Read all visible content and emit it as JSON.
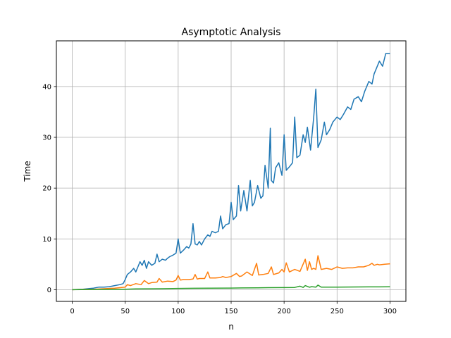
{
  "chart_data": {
    "type": "line",
    "title": "Asymptotic Analysis",
    "xlabel": "n",
    "ylabel": "Time",
    "xlim": [
      -15,
      315
    ],
    "ylim": [
      -2.3,
      49.0
    ],
    "grid": true,
    "x_ticks": [
      0,
      50,
      100,
      150,
      200,
      250,
      300
    ],
    "y_ticks": [
      0,
      10,
      20,
      30,
      40
    ],
    "series": [
      {
        "color": "#1f77b4",
        "x": [
          0,
          10,
          20,
          25,
          30,
          35,
          40,
          45,
          48,
          50,
          52,
          55,
          58,
          60,
          62,
          64,
          66,
          68,
          70,
          72,
          75,
          78,
          80,
          82,
          85,
          88,
          90,
          92,
          95,
          98,
          100,
          102,
          105,
          108,
          110,
          112,
          114,
          116,
          118,
          120,
          122,
          125,
          128,
          130,
          132,
          135,
          138,
          140,
          142,
          145,
          148,
          150,
          152,
          155,
          157,
          159,
          162,
          165,
          168,
          170,
          172,
          175,
          178,
          180,
          182,
          185,
          187,
          188,
          190,
          192,
          195,
          198,
          200,
          202,
          205,
          208,
          210,
          212,
          215,
          218,
          220,
          222,
          225,
          228,
          230,
          232,
          235,
          238,
          240,
          243,
          246,
          250,
          253,
          256,
          260,
          263,
          266,
          270,
          273,
          276,
          280,
          283,
          285,
          288,
          290,
          293,
          296,
          300
        ],
        "y": [
          0,
          0.1,
          0.3,
          0.5,
          0.5,
          0.6,
          0.8,
          1.0,
          1.2,
          2.0,
          3.0,
          3.5,
          4.2,
          3.5,
          4.5,
          5.5,
          4.8,
          5.8,
          4.2,
          5.5,
          4.8,
          5.2,
          7.0,
          5.5,
          6.0,
          5.8,
          6.2,
          6.5,
          6.8,
          7.2,
          10.0,
          7.2,
          7.8,
          8.5,
          8.2,
          9.0,
          13.0,
          9.0,
          8.8,
          9.5,
          8.8,
          10.0,
          10.8,
          10.5,
          11.5,
          11.2,
          11.5,
          14.5,
          12.0,
          12.8,
          13.0,
          17.2,
          13.8,
          14.5,
          20.5,
          15.5,
          19.5,
          15.5,
          21.5,
          16.5,
          17.2,
          20.5,
          18.0,
          18.5,
          24.5,
          20.0,
          31.8,
          21.5,
          21.0,
          24.0,
          25.0,
          22.5,
          30.5,
          23.5,
          24.2,
          25.0,
          34.0,
          26.0,
          26.5,
          30.5,
          29.0,
          32.0,
          27.5,
          34.0,
          39.5,
          28.0,
          29.5,
          33.0,
          30.5,
          31.5,
          33.0,
          34.0,
          33.5,
          34.5,
          36.0,
          35.5,
          37.5,
          38.0,
          37.0,
          39.0,
          41.0,
          40.5,
          42.5,
          44.0,
          45.0,
          44.0,
          46.5,
          46.5
        ]
      },
      {
        "color": "#ff7f0e",
        "x": [
          0,
          20,
          30,
          40,
          45,
          50,
          52,
          55,
          60,
          65,
          68,
          70,
          72,
          75,
          80,
          82,
          85,
          90,
          95,
          98,
          100,
          102,
          105,
          110,
          114,
          116,
          118,
          120,
          125,
          128,
          130,
          135,
          140,
          142,
          145,
          150,
          155,
          158,
          160,
          165,
          170,
          174,
          176,
          180,
          185,
          188,
          190,
          195,
          198,
          200,
          202,
          205,
          210,
          215,
          220,
          222,
          224,
          226,
          228,
          230,
          232,
          235,
          240,
          245,
          250,
          255,
          260,
          265,
          270,
          275,
          280,
          283,
          285,
          288,
          290,
          295,
          300
        ],
        "y": [
          0,
          0.1,
          0.2,
          0.3,
          0.4,
          0.5,
          1.0,
          0.8,
          1.2,
          1.0,
          1.8,
          1.5,
          1.2,
          1.4,
          1.5,
          2.2,
          1.5,
          1.7,
          1.6,
          1.9,
          2.8,
          1.9,
          2.0,
          2.0,
          2.1,
          3.0,
          2.1,
          2.2,
          2.2,
          3.5,
          2.3,
          2.3,
          2.4,
          2.6,
          2.4,
          2.6,
          3.2,
          2.6,
          2.7,
          3.5,
          2.8,
          5.2,
          2.9,
          3.0,
          3.2,
          4.5,
          3.0,
          3.3,
          4.0,
          3.5,
          5.3,
          3.5,
          4.0,
          3.6,
          6.0,
          3.8,
          5.5,
          4.0,
          4.2,
          4.0,
          6.7,
          4.0,
          4.2,
          4.0,
          4.5,
          4.2,
          4.3,
          4.3,
          4.5,
          4.5,
          4.8,
          5.2,
          4.8,
          5.0,
          4.9,
          5.0,
          5.1
        ]
      },
      {
        "color": "#2ca02c",
        "x": [
          0,
          50,
          60,
          75,
          85,
          100,
          115,
          130,
          150,
          160,
          175,
          185,
          200,
          210,
          215,
          218,
          220,
          224,
          226,
          230,
          232,
          235,
          240,
          250,
          260,
          270,
          280,
          290,
          300
        ],
        "y": [
          0,
          0.1,
          0.15,
          0.18,
          0.2,
          0.25,
          0.28,
          0.3,
          0.32,
          0.35,
          0.38,
          0.4,
          0.42,
          0.45,
          0.7,
          0.45,
          0.8,
          0.48,
          0.6,
          0.5,
          0.9,
          0.5,
          0.52,
          0.52,
          0.53,
          0.54,
          0.55,
          0.56,
          0.58
        ]
      }
    ]
  }
}
